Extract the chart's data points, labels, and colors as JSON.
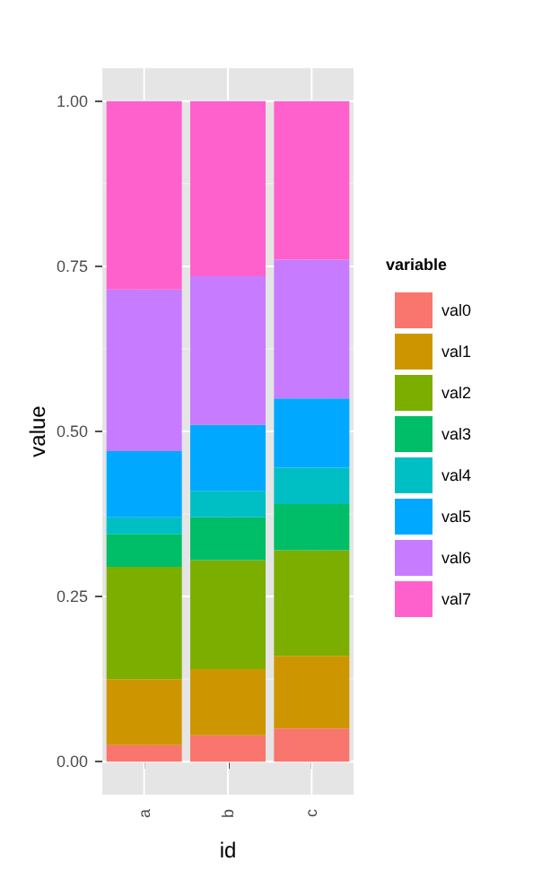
{
  "chart_data": {
    "type": "bar",
    "stacked": true,
    "xlabel": "id",
    "ylabel": "value",
    "legend_title": "variable",
    "categories": [
      "a",
      "b",
      "c"
    ],
    "series": [
      {
        "name": "val0",
        "color": "#f8766d",
        "values": [
          0.025,
          0.04,
          0.05
        ]
      },
      {
        "name": "val1",
        "color": "#cd9600",
        "values": [
          0.1,
          0.1,
          0.11
        ]
      },
      {
        "name": "val2",
        "color": "#7cae00",
        "values": [
          0.17,
          0.165,
          0.16
        ]
      },
      {
        "name": "val3",
        "color": "#00be67",
        "values": [
          0.05,
          0.065,
          0.07
        ]
      },
      {
        "name": "val4",
        "color": "#00bfc4",
        "values": [
          0.025,
          0.04,
          0.055
        ]
      },
      {
        "name": "val5",
        "color": "#00a9ff",
        "values": [
          0.1,
          0.1,
          0.105
        ]
      },
      {
        "name": "val6",
        "color": "#c77cff",
        "values": [
          0.245,
          0.225,
          0.21
        ]
      },
      {
        "name": "val7",
        "color": "#ff61cc",
        "values": [
          0.285,
          0.265,
          0.24
        ]
      }
    ],
    "ylim": [
      -0.05,
      1.05
    ],
    "yticks": [
      {
        "value": 0,
        "label": "0.00"
      },
      {
        "value": 0.25,
        "label": "0.25"
      },
      {
        "value": 0.5,
        "label": "0.50"
      },
      {
        "value": 0.75,
        "label": "0.75"
      },
      {
        "value": 1,
        "label": "1.00"
      }
    ],
    "grid": true,
    "legend": "right"
  }
}
